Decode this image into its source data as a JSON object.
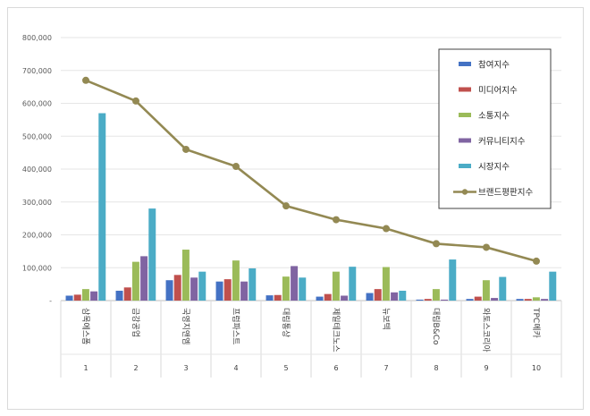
{
  "chart_data": {
    "type": "bar",
    "title": "",
    "xlabel": "",
    "ylabel": "",
    "ylim": [
      0,
      800000
    ],
    "yticks": [
      0,
      100000,
      200000,
      300000,
      400000,
      500000,
      600000,
      700000,
      800000
    ],
    "ytick_labels": [
      "-",
      "100,000",
      "200,000",
      "300,000",
      "400,000",
      "500,000",
      "600,000",
      "700,000",
      "800,000"
    ],
    "categories": [
      "삼목에스폼",
      "금강공업",
      "국영지앤엠",
      "프럼파스트",
      "대림통상",
      "제일테크노스",
      "뉴보텍",
      "대림B&Co",
      "와토스코리아",
      "TPC메카"
    ],
    "ranks": [
      "1",
      "2",
      "3",
      "4",
      "5",
      "6",
      "7",
      "8",
      "9",
      "10"
    ],
    "series": [
      {
        "name": "참여지수",
        "color": "#4472c4",
        "type": "bar",
        "values": [
          15000,
          30000,
          62000,
          58000,
          16000,
          12000,
          23000,
          3000,
          5000,
          5000
        ]
      },
      {
        "name": "미디어지수",
        "color": "#c0504d",
        "type": "bar",
        "values": [
          18000,
          40000,
          78000,
          65000,
          17000,
          20000,
          35000,
          5000,
          12000,
          5000
        ]
      },
      {
        "name": "소통지수",
        "color": "#9bbb59",
        "type": "bar",
        "values": [
          35000,
          118000,
          155000,
          122000,
          73000,
          88000,
          102000,
          35000,
          62000,
          10000
        ]
      },
      {
        "name": "커뮤니티지수",
        "color": "#8064a2",
        "type": "bar",
        "values": [
          28000,
          135000,
          70000,
          58000,
          105000,
          15000,
          25000,
          3000,
          8000,
          5000
        ]
      },
      {
        "name": "시장지수",
        "color": "#4bacc6",
        "type": "bar",
        "values": [
          570000,
          280000,
          88000,
          98000,
          70000,
          103000,
          30000,
          125000,
          72000,
          88000
        ]
      },
      {
        "name": "브랜드평판지수",
        "color": "#938953",
        "type": "line",
        "values": [
          670000,
          607000,
          460000,
          408000,
          288000,
          246000,
          219000,
          173000,
          162000,
          120000
        ]
      }
    ]
  }
}
